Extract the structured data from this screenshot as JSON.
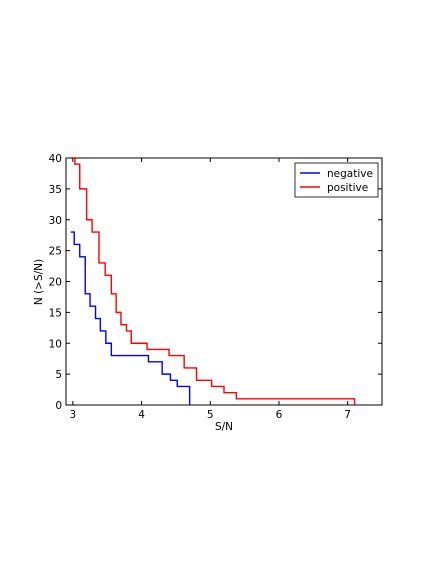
{
  "chart_data": {
    "type": "line",
    "title": "",
    "xlabel": "S/N",
    "ylabel": "N (>S/N)",
    "xlim": [
      2.9,
      7.5
    ],
    "ylim": [
      0,
      40
    ],
    "xticks": [
      3,
      4,
      5,
      6,
      7
    ],
    "yticks": [
      0,
      5,
      10,
      15,
      20,
      25,
      30,
      35,
      40
    ],
    "grid": false,
    "legend_position": "top-right",
    "series": [
      {
        "name": "negative",
        "color": "#0000ff",
        "step": "post",
        "x": [
          2.97,
          3.02,
          3.1,
          3.18,
          3.25,
          3.33,
          3.4,
          3.48,
          3.56,
          3.65,
          3.7,
          4.1,
          4.3,
          4.42,
          4.52,
          4.7
        ],
        "y": [
          28,
          26,
          24,
          18,
          16,
          14,
          12,
          10,
          8,
          8,
          8,
          7,
          5,
          4,
          3,
          0
        ]
      },
      {
        "name": "positive",
        "color": "#ff0000",
        "step": "post",
        "x": [
          2.97,
          3.03,
          3.1,
          3.2,
          3.28,
          3.38,
          3.47,
          3.56,
          3.63,
          3.7,
          3.78,
          3.85,
          4.08,
          4.4,
          4.62,
          4.8,
          5.02,
          5.2,
          5.38,
          7.1
        ],
        "y": [
          40,
          39,
          35,
          30,
          28,
          23,
          21,
          18,
          15,
          13,
          12,
          10,
          9,
          8,
          6,
          4,
          3,
          2,
          1,
          0
        ]
      }
    ]
  }
}
